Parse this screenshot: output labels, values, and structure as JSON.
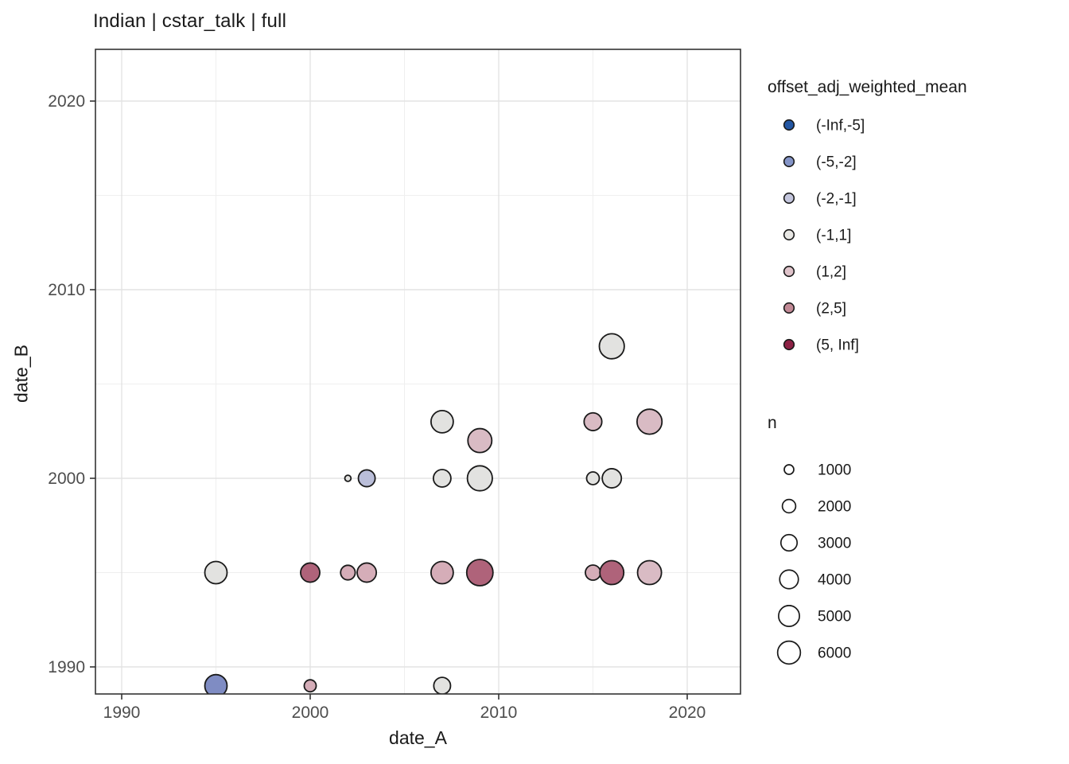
{
  "chart_data": {
    "type": "scatter",
    "title": "Indian | cstar_talk | full",
    "xlabel": "date_A",
    "ylabel": "date_B",
    "x_ticks": [
      1990,
      2000,
      2010,
      2020
    ],
    "y_ticks": [
      1990,
      2000,
      2010,
      2020
    ],
    "x_minor_gridlines": [
      1995,
      2005,
      2015
    ],
    "y_minor_gridlines": [
      1995,
      2005,
      2015
    ],
    "xlim": [
      1988.6,
      2022.8
    ],
    "ylim": [
      1988.6,
      2022.7
    ],
    "grid": "major and minor, light gray, panel bordered (theme_bw)",
    "legend_position": "right",
    "color_legend": {
      "title": "offset_adj_weighted_mean",
      "bins": [
        {
          "label": "(-Inf,-5]",
          "legend_fill": "#2356A3",
          "point_fill": "#5D77B0"
        },
        {
          "label": "(-5,-2]",
          "legend_fill": "#8494C7",
          "point_fill": "#7F8CC3"
        },
        {
          "label": "(-2,-1]",
          "legend_fill": "#C4C6DD",
          "point_fill": "#BABED9"
        },
        {
          "label": "(-1,1]",
          "legend_fill": "#E8E7E4",
          "point_fill": "#E2E2E0"
        },
        {
          "label": "(1,2]",
          "legend_fill": "#DFC3CA",
          "point_fill": "#D9BBC4"
        },
        {
          "label": "(2,5]",
          "legend_fill": "#C28A96",
          "point_fill": "#D5ADB8"
        },
        {
          "label": "(5, Inf]",
          "legend_fill": "#8D2145",
          "point_fill": "#AF637A"
        }
      ]
    },
    "size_legend": {
      "title": "n",
      "values": [
        1000,
        2000,
        3000,
        4000,
        5000,
        6000
      ]
    },
    "points": [
      {
        "x": 1995,
        "y": 1989,
        "bin": "(-5,-2]",
        "n": 5700
      },
      {
        "x": 2000,
        "y": 1989,
        "bin": "(2,5]",
        "n": 1600
      },
      {
        "x": 2007,
        "y": 1989,
        "bin": "(-1,1]",
        "n": 3200
      },
      {
        "x": 1995,
        "y": 1995,
        "bin": "(-1,1]",
        "n": 5700
      },
      {
        "x": 2000,
        "y": 1995,
        "bin": "(5, Inf]",
        "n": 4200
      },
      {
        "x": 2002,
        "y": 1995,
        "bin": "(2,5]",
        "n": 2400
      },
      {
        "x": 2003,
        "y": 1995,
        "bin": "(2,5]",
        "n": 4200
      },
      {
        "x": 2007,
        "y": 1995,
        "bin": "(2,5]",
        "n": 5700
      },
      {
        "x": 2009,
        "y": 1995,
        "bin": "(5, Inf]",
        "n": 8000
      },
      {
        "x": 2015,
        "y": 1995,
        "bin": "(2,5]",
        "n": 2600
      },
      {
        "x": 2016,
        "y": 1995,
        "bin": "(5, Inf]",
        "n": 6600
      },
      {
        "x": 2018,
        "y": 1995,
        "bin": "(1,2]",
        "n": 6600
      },
      {
        "x": 2002,
        "y": 2000,
        "bin": "(-1,1]",
        "n": 400
      },
      {
        "x": 2003,
        "y": 2000,
        "bin": "(-2,-1]",
        "n": 3200
      },
      {
        "x": 2007,
        "y": 2000,
        "bin": "(-1,1]",
        "n": 3500
      },
      {
        "x": 2009,
        "y": 2000,
        "bin": "(-1,1]",
        "n": 7200
      },
      {
        "x": 2015,
        "y": 2000,
        "bin": "(-1,1]",
        "n": 1800
      },
      {
        "x": 2016,
        "y": 2000,
        "bin": "(-1,1]",
        "n": 4200
      },
      {
        "x": 2009,
        "y": 2002,
        "bin": "(1,2]",
        "n": 6600
      },
      {
        "x": 2007,
        "y": 2003,
        "bin": "(-1,1]",
        "n": 5700
      },
      {
        "x": 2015,
        "y": 2003,
        "bin": "(1,2]",
        "n": 3600
      },
      {
        "x": 2018,
        "y": 2003,
        "bin": "(1,2]",
        "n": 7200
      },
      {
        "x": 2016,
        "y": 2007,
        "bin": "(-1,1]",
        "n": 7200
      }
    ]
  }
}
